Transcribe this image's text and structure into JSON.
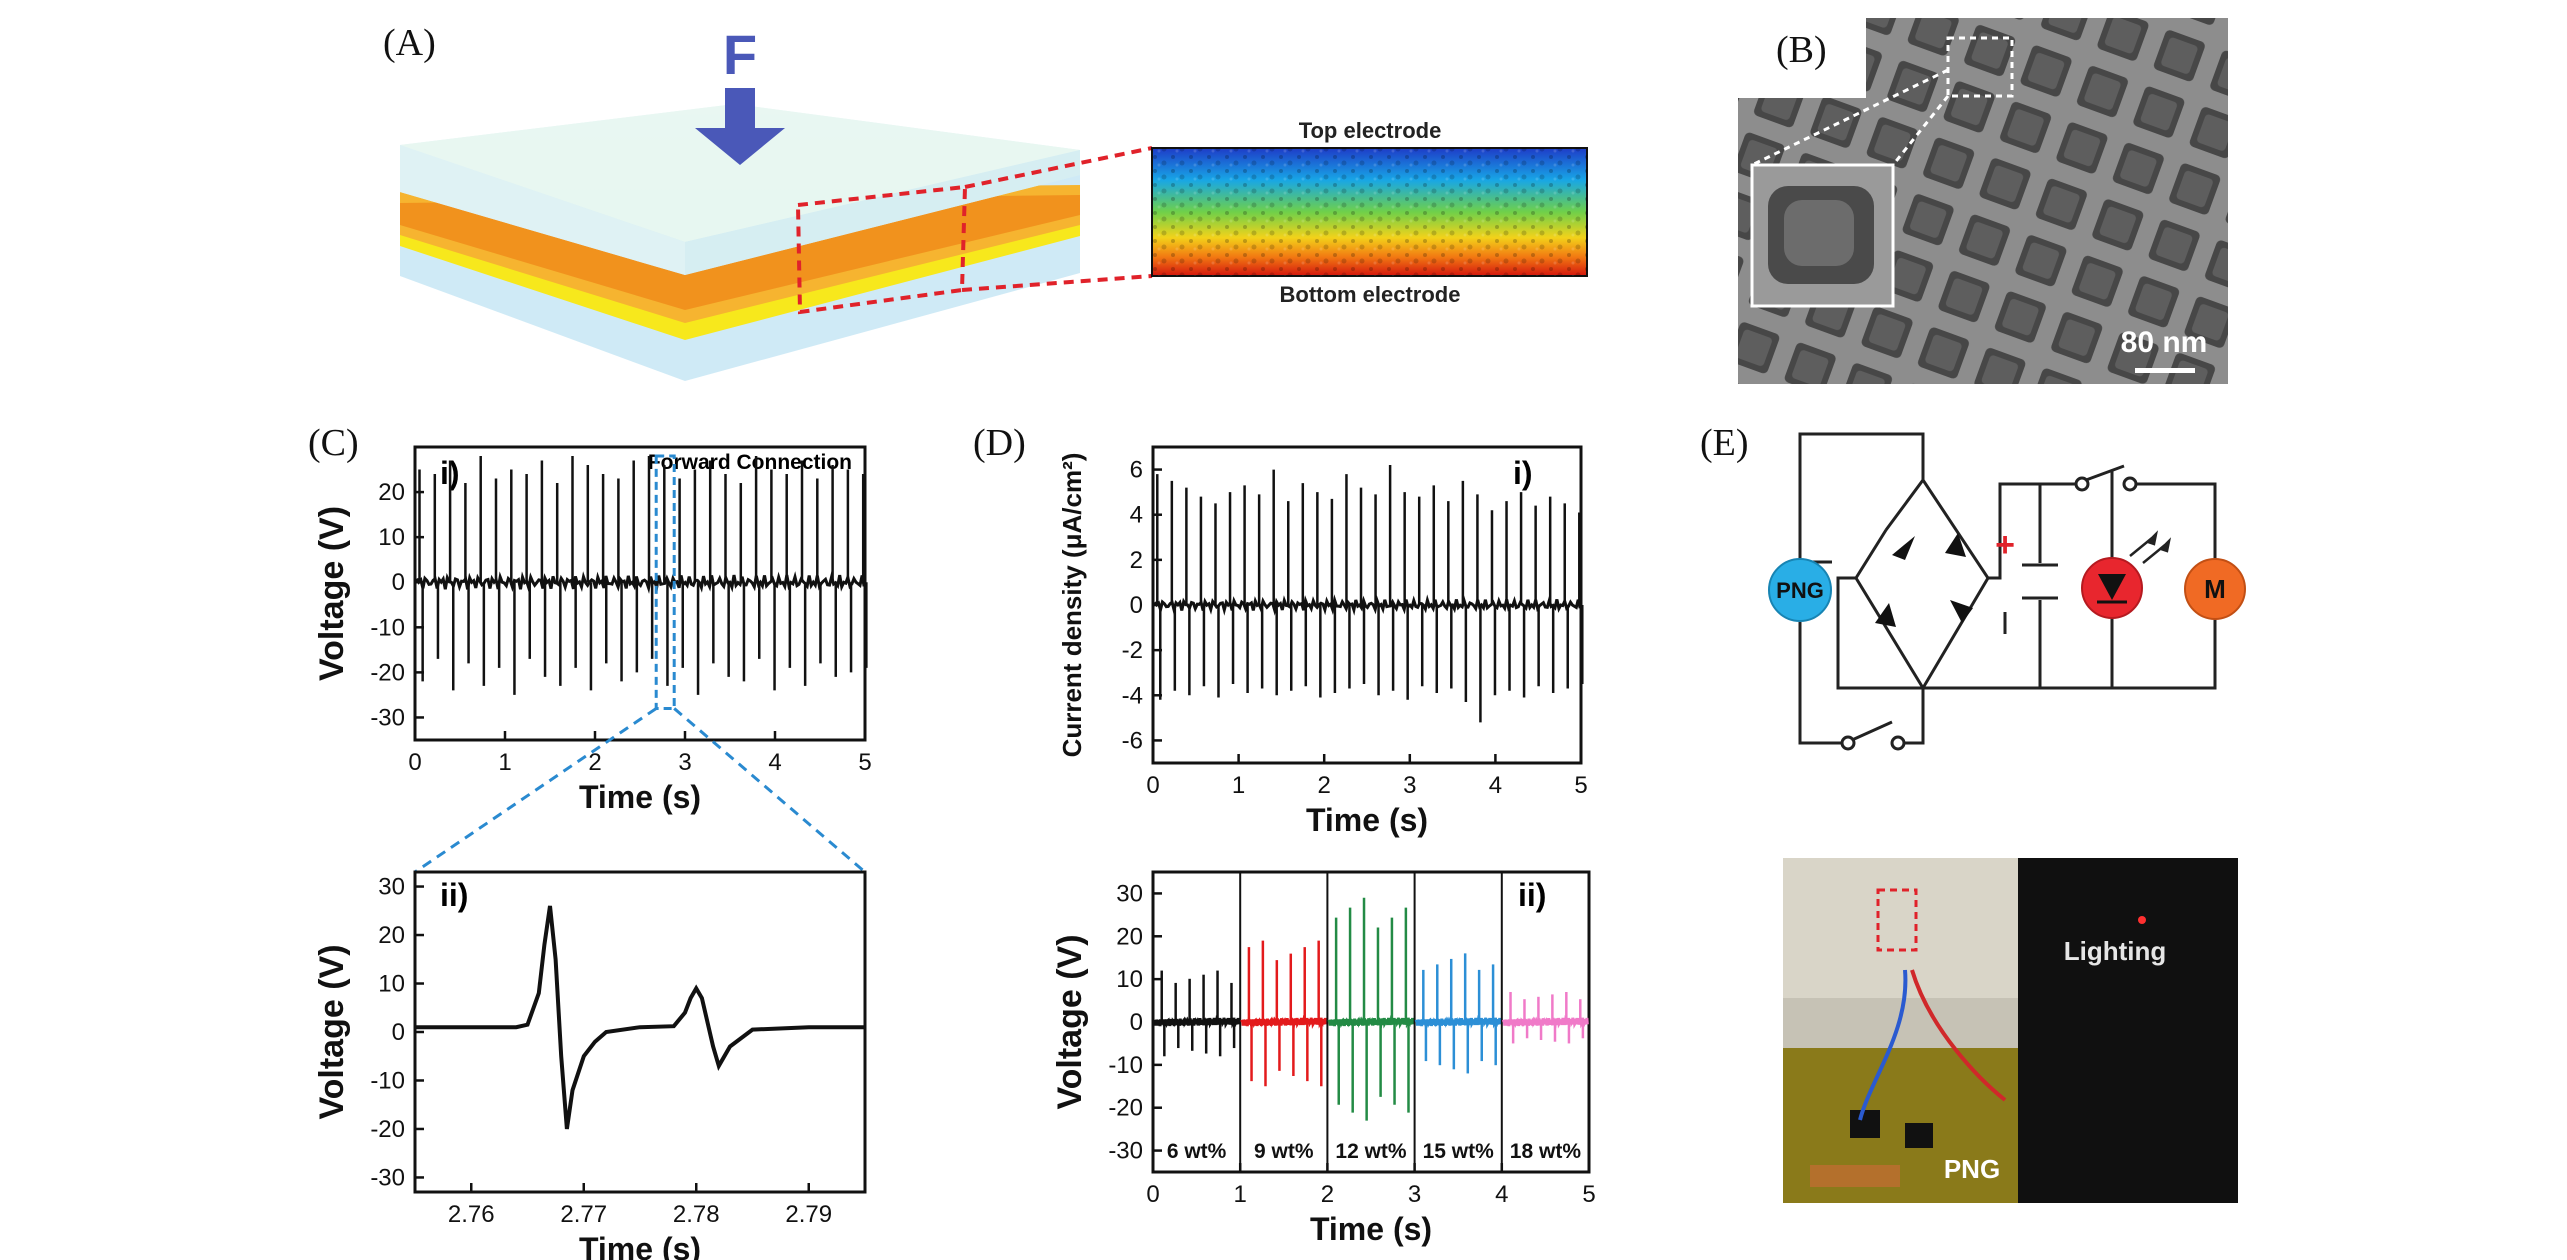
{
  "figure": {
    "panel_labels": {
      "A": "(A)",
      "B": "(B)",
      "C": "(C)",
      "D": "(D)",
      "E": "(E)"
    },
    "panel_a": {
      "force_label": "F",
      "top_electrode": "Top electrode",
      "bottom_electrode": "Bottom electrode"
    },
    "panel_b": {
      "scale_bar": "80 nm"
    },
    "panel_e": {
      "png_label": "PNG",
      "motor_label": "M",
      "plus_sign": "+",
      "photo_png_label": "PNG",
      "photo_lighting_label": "Lighting"
    }
  },
  "chart_data": [
    {
      "id": "C-i",
      "type": "line",
      "subpanel": "i)",
      "annotation": "Forward Connection",
      "xlabel": "Time (s)",
      "ylabel": "Voltage (V)",
      "xlim": [
        0,
        5
      ],
      "ylim": [
        -35,
        30
      ],
      "xticks": [
        0,
        1,
        2,
        3,
        4,
        5
      ],
      "yticks": [
        20,
        10,
        0,
        -10,
        -20,
        -30
      ],
      "highlight_x": [
        2.68,
        2.88
      ],
      "pulses": {
        "times": [
          0.05,
          0.22,
          0.39,
          0.56,
          0.73,
          0.9,
          1.07,
          1.24,
          1.41,
          1.58,
          1.75,
          1.92,
          2.09,
          2.26,
          2.43,
          2.6,
          2.77,
          2.94,
          3.11,
          3.28,
          3.45,
          3.62,
          3.79,
          3.96,
          4.13,
          4.3,
          4.47,
          4.64,
          4.81,
          4.98
        ],
        "peaks": [
          25,
          24,
          27,
          22,
          28,
          23,
          25,
          24,
          27,
          22,
          28,
          26,
          24,
          23,
          27,
          28,
          26,
          23,
          25,
          27,
          24,
          22,
          28,
          25,
          24,
          27,
          23,
          26,
          25,
          24
        ],
        "troughs": [
          -22,
          -17,
          -24,
          -18,
          -23,
          -19,
          -25,
          -17,
          -21,
          -23,
          -19,
          -24,
          -18,
          -22,
          -20,
          -17,
          -23,
          -19,
          -25,
          -18,
          -21,
          -22,
          -17,
          -24,
          -19,
          -23,
          -18,
          -21,
          -20,
          -19
        ]
      }
    },
    {
      "id": "C-ii",
      "type": "line",
      "subpanel": "ii)",
      "xlabel": "Time (s)",
      "ylabel": "Voltage (V)",
      "xlim": [
        2.755,
        2.795
      ],
      "ylim": [
        -33,
        33
      ],
      "xticks": [
        2.76,
        2.77,
        2.78,
        2.79
      ],
      "yticks": [
        30,
        20,
        10,
        0,
        -10,
        -20,
        -30
      ],
      "x": [
        2.755,
        2.76,
        2.764,
        2.765,
        2.766,
        2.7665,
        2.767,
        2.7675,
        2.768,
        2.7685,
        2.769,
        2.77,
        2.771,
        2.772,
        2.775,
        2.778,
        2.779,
        2.7795,
        2.78,
        2.7805,
        2.781,
        2.7815,
        2.782,
        2.783,
        2.785,
        2.79,
        2.795
      ],
      "y": [
        1,
        1,
        1,
        1.5,
        8,
        18,
        26,
        15,
        -5,
        -20,
        -12,
        -5,
        -2,
        0,
        1,
        1.2,
        4,
        7,
        9,
        7,
        2,
        -3,
        -7,
        -3,
        0.5,
        1,
        1
      ]
    },
    {
      "id": "D-i",
      "type": "line",
      "subpanel": "i)",
      "xlabel": "Time (s)",
      "ylabel": "Current density (μA/cm²)",
      "xlim": [
        0,
        5
      ],
      "ylim": [
        -7,
        7
      ],
      "xticks": [
        0,
        1,
        2,
        3,
        4,
        5
      ],
      "yticks": [
        6,
        4,
        2,
        0,
        -2,
        -4,
        -6
      ],
      "pulses": {
        "times": [
          0.05,
          0.22,
          0.39,
          0.56,
          0.73,
          0.9,
          1.07,
          1.24,
          1.41,
          1.58,
          1.75,
          1.92,
          2.09,
          2.26,
          2.43,
          2.6,
          2.77,
          2.94,
          3.11,
          3.28,
          3.45,
          3.62,
          3.79,
          3.96,
          4.13,
          4.3,
          4.47,
          4.64,
          4.81,
          4.98
        ],
        "peaks": [
          5.8,
          5.5,
          5.2,
          4.8,
          4.5,
          5.0,
          5.3,
          4.9,
          6.0,
          4.6,
          5.4,
          5.0,
          4.7,
          5.8,
          5.2,
          4.9,
          6.2,
          5.0,
          4.8,
          5.3,
          4.6,
          5.5,
          4.9,
          4.2,
          4.6,
          5.0,
          4.4,
          4.8,
          4.5,
          4.1
        ],
        "troughs": [
          -4.2,
          -3.8,
          -4.0,
          -3.6,
          -4.1,
          -3.5,
          -3.9,
          -3.7,
          -4.0,
          -3.8,
          -3.6,
          -4.1,
          -3.9,
          -3.7,
          -3.5,
          -4.0,
          -3.8,
          -4.2,
          -3.6,
          -3.9,
          -3.7,
          -4.3,
          -5.2,
          -4.0,
          -3.8,
          -4.1,
          -3.6,
          -3.9,
          -3.7,
          -3.5
        ]
      }
    },
    {
      "id": "D-ii",
      "type": "line",
      "subpanel": "ii)",
      "xlabel": "Time (s)",
      "ylabel": "Voltage (V)",
      "xlim": [
        0,
        5
      ],
      "ylim": [
        -35,
        35
      ],
      "xticks": [
        0,
        1,
        2,
        3,
        4,
        5
      ],
      "yticks": [
        30,
        20,
        10,
        0,
        -10,
        -20,
        -30
      ],
      "series": [
        {
          "name": "6 wt%",
          "color": "#111111",
          "x_range": [
            0,
            1
          ],
          "peak": 12,
          "trough": -8
        },
        {
          "name": "9 wt%",
          "color": "#e31a1c",
          "x_range": [
            1,
            2
          ],
          "peak": 19,
          "trough": -15
        },
        {
          "name": "12 wt%",
          "color": "#238b45",
          "x_range": [
            2,
            3
          ],
          "peak": 29,
          "trough": -23
        },
        {
          "name": "15 wt%",
          "color": "#2c8fd6",
          "x_range": [
            3,
            4
          ],
          "peak": 16,
          "trough": -12
        },
        {
          "name": "18 wt%",
          "color": "#f07ac8",
          "x_range": [
            4,
            5
          ],
          "peak": 7,
          "trough": -5
        }
      ]
    }
  ]
}
